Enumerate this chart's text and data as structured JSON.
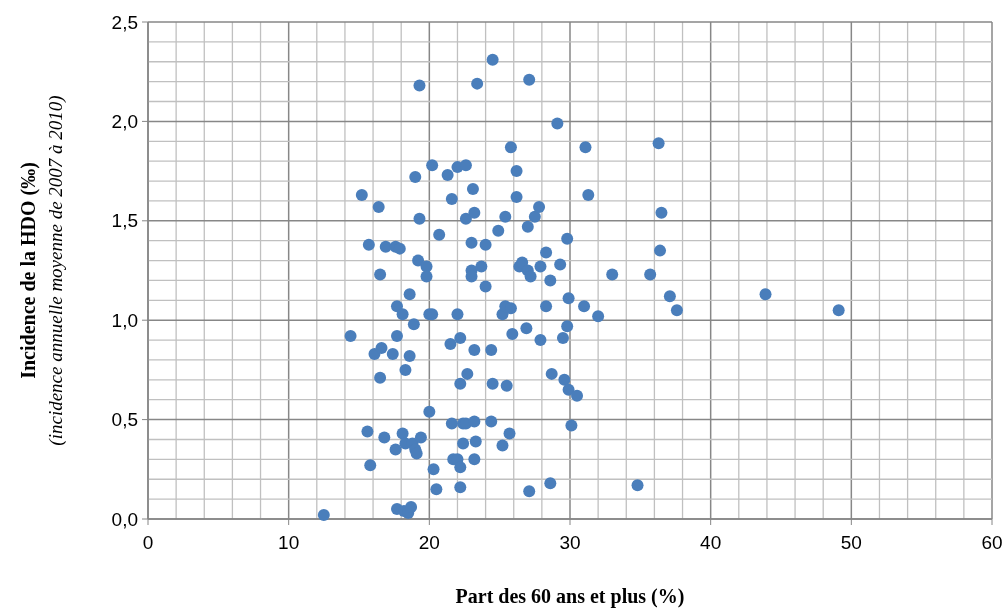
{
  "chart_data": {
    "type": "scatter",
    "xlabel": "Part des 60 ans et plus (%)",
    "ylabel": "Incidence de la HDO (‰)\n(incidence annuelle moyenne de 2007 à 2010)",
    "xlim": [
      0,
      60
    ],
    "ylim": [
      0,
      2.5
    ],
    "xticks": [
      0,
      {
        "value": 2,
        "label": null
      },
      {
        "value": 4,
        "label": null
      },
      {
        "value": 6,
        "label": null
      },
      {
        "value": 8,
        "label": null
      },
      10,
      {
        "value": 12,
        "label": null
      },
      {
        "value": 14,
        "label": null
      },
      {
        "value": 16,
        "label": null
      },
      {
        "value": 18,
        "label": null
      },
      20,
      {
        "value": 22,
        "label": null
      },
      {
        "value": 24,
        "label": null
      },
      {
        "value": 26,
        "label": null
      },
      {
        "value": 28,
        "label": null
      },
      30,
      {
        "value": 32,
        "label": null
      },
      {
        "value": 34,
        "label": null
      },
      {
        "value": 36,
        "label": null
      },
      {
        "value": 38,
        "label": null
      },
      40,
      {
        "value": 42,
        "label": null
      },
      {
        "value": 44,
        "label": null
      },
      {
        "value": 46,
        "label": null
      },
      {
        "value": 48,
        "label": null
      },
      50,
      {
        "value": 52,
        "label": null
      },
      {
        "value": 54,
        "label": null
      },
      {
        "value": 56,
        "label": null
      },
      {
        "value": 58,
        "label": null
      },
      60
    ],
    "yticks": [
      {
        "value": 0,
        "label": "0,0"
      },
      {
        "value": 0.1,
        "label": null
      },
      {
        "value": 0.2,
        "label": null
      },
      {
        "value": 0.3,
        "label": null
      },
      {
        "value": 0.4,
        "label": null
      },
      {
        "value": 0.5,
        "label": "0,5"
      },
      {
        "value": 0.6,
        "label": null
      },
      {
        "value": 0.7,
        "label": null
      },
      {
        "value": 0.8,
        "label": null
      },
      {
        "value": 0.9,
        "label": null
      },
      {
        "value": 1,
        "label": "1,0"
      },
      {
        "value": 1.1,
        "label": null
      },
      {
        "value": 1.2,
        "label": null
      },
      {
        "value": 1.3,
        "label": null
      },
      {
        "value": 1.4,
        "label": null
      },
      {
        "value": 1.5,
        "label": "1,5"
      },
      {
        "value": 1.6,
        "label": null
      },
      {
        "value": 1.7,
        "label": null
      },
      {
        "value": 1.8,
        "label": null
      },
      {
        "value": 1.9,
        "label": null
      },
      {
        "value": 2,
        "label": "2,0"
      },
      {
        "value": 2.1,
        "label": null
      },
      {
        "value": 2.2,
        "label": null
      },
      {
        "value": 2.3,
        "label": null
      },
      {
        "value": 2.4,
        "label": null
      },
      {
        "value": 2.5,
        "label": "2,5"
      }
    ],
    "grid": true,
    "marker": "circle",
    "series": [
      {
        "color": "#4a7ebb",
        "x": [
          12.5,
          14.4,
          15.2,
          15.6,
          15.7,
          15.8,
          16.1,
          16.4,
          16.6,
          16.5,
          16.5,
          16.8,
          16.9,
          17.4,
          17.6,
          17.7,
          17.7,
          17.6,
          17.7,
          17.9,
          18.1,
          18.1,
          18.2,
          18.3,
          18.3,
          18.5,
          18.6,
          18.6,
          18.7,
          18.8,
          18.9,
          19.0,
          19.0,
          19.1,
          19.2,
          19.3,
          19.3,
          19.4,
          19.8,
          19.8,
          20.0,
          20.0,
          20.2,
          20.2,
          20.3,
          20.5,
          20.7,
          21.3,
          21.5,
          21.6,
          21.6,
          21.7,
          22.0,
          22.0,
          22.0,
          22.2,
          22.2,
          22.2,
          22.2,
          22.4,
          22.4,
          22.6,
          22.6,
          22.6,
          22.7,
          23.0,
          23.0,
          23.0,
          23.1,
          23.2,
          23.2,
          23.2,
          23.2,
          23.3,
          23.4,
          23.7,
          24.0,
          24.0,
          24.4,
          24.4,
          24.5,
          24.5,
          24.9,
          25.2,
          25.2,
          25.4,
          25.4,
          25.5,
          25.7,
          25.8,
          25.9,
          25.8,
          26.2,
          26.2,
          26.4,
          26.6,
          26.9,
          27.0,
          27.0,
          27.1,
          27.1,
          27.2,
          27.5,
          27.8,
          27.9,
          27.9,
          28.3,
          28.3,
          28.6,
          28.7,
          28.6,
          29.1,
          29.3,
          29.5,
          29.6,
          29.8,
          29.8,
          29.9,
          29.9,
          30.1,
          30.5,
          31.1,
          31.0,
          31.3,
          32.0,
          33.0,
          34.8,
          35.7,
          36.3,
          36.4,
          36.5,
          37.1,
          37.6,
          43.9,
          49.1
        ],
        "values": [
          0.02,
          0.92,
          1.63,
          0.44,
          1.38,
          0.27,
          0.83,
          1.57,
          0.86,
          1.23,
          0.71,
          0.41,
          1.37,
          0.83,
          1.37,
          1.07,
          0.92,
          0.35,
          0.05,
          1.36,
          1.03,
          0.43,
          0.04,
          0.75,
          0.38,
          0.03,
          1.13,
          0.82,
          0.06,
          0.38,
          0.98,
          1.72,
          0.35,
          0.33,
          1.3,
          2.18,
          1.51,
          0.41,
          1.27,
          1.22,
          1.03,
          0.54,
          1.03,
          1.78,
          0.25,
          0.15,
          1.43,
          1.73,
          0.88,
          1.61,
          0.48,
          0.3,
          1.77,
          1.03,
          0.3,
          0.91,
          0.68,
          0.26,
          0.16,
          0.48,
          0.38,
          1.78,
          1.51,
          0.48,
          0.73,
          1.39,
          1.25,
          1.22,
          1.66,
          1.54,
          0.85,
          0.49,
          0.3,
          0.39,
          2.19,
          1.27,
          1.38,
          1.17,
          0.85,
          0.49,
          0.68,
          2.31,
          1.45,
          1.03,
          0.37,
          1.52,
          1.07,
          0.67,
          0.43,
          1.06,
          0.93,
          1.87,
          1.62,
          1.75,
          1.27,
          1.29,
          0.96,
          1.47,
          1.25,
          2.21,
          0.14,
          1.22,
          1.52,
          1.57,
          0.9,
          1.27,
          1.34,
          1.07,
          1.2,
          0.73,
          0.18,
          1.99,
          1.28,
          0.91,
          0.7,
          1.41,
          0.97,
          1.11,
          0.65,
          0.47,
          0.62,
          1.87,
          1.07,
          1.63,
          1.02,
          1.23,
          0.17,
          1.23,
          1.89,
          1.35,
          1.54,
          1.12,
          1.05,
          1.13,
          1.05
        ]
      }
    ]
  }
}
